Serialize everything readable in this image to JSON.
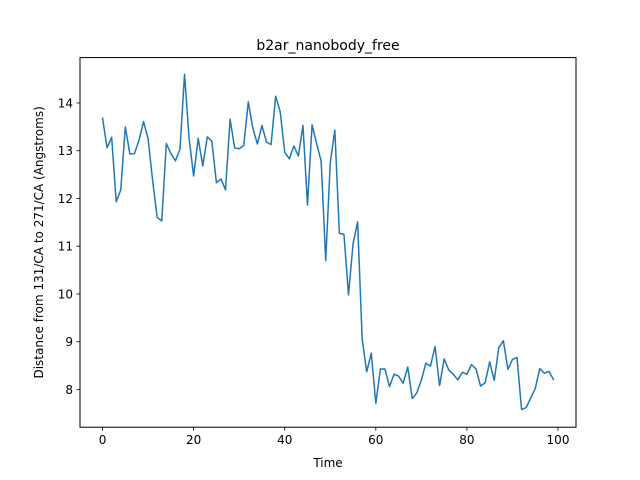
{
  "chart_data": {
    "type": "line",
    "title": "b2ar_nanobody_free",
    "xlabel": "Time",
    "ylabel": "Distance from 131/CA to 271/CA (Angstroms)",
    "xlim": [
      -4.95,
      103.95
    ],
    "ylim": [
      7.21,
      14.95
    ],
    "xticks": [
      0,
      20,
      40,
      60,
      80,
      100
    ],
    "xtick_labels": [
      "0",
      "20",
      "40",
      "60",
      "80",
      "100"
    ],
    "yticks": [
      8,
      9,
      10,
      11,
      12,
      13,
      14
    ],
    "ytick_labels": [
      "8",
      "9",
      "10",
      "11",
      "12",
      "13",
      "14"
    ],
    "grid": false,
    "legend": "none",
    "series": [
      {
        "color": "#1f77b4",
        "x": [
          0,
          1,
          2,
          3,
          4,
          5,
          6,
          7,
          8,
          9,
          10,
          11,
          12,
          13,
          14,
          15,
          16,
          17,
          18,
          19,
          20,
          21,
          22,
          23,
          24,
          25,
          26,
          27,
          28,
          29,
          30,
          31,
          32,
          33,
          34,
          35,
          36,
          37,
          38,
          39,
          40,
          41,
          42,
          43,
          44,
          45,
          46,
          47,
          48,
          49,
          50,
          51,
          52,
          53,
          54,
          55,
          56,
          57,
          58,
          59,
          60,
          61,
          62,
          63,
          64,
          65,
          66,
          67,
          68,
          69,
          70,
          71,
          72,
          73,
          74,
          75,
          76,
          77,
          78,
          79,
          80,
          81,
          82,
          83,
          84,
          85,
          86,
          87,
          88,
          89,
          90,
          91,
          92,
          93,
          94,
          95,
          96,
          97,
          98,
          99
        ],
        "y": [
          13.68,
          13.06,
          13.28,
          11.93,
          12.18,
          13.5,
          12.93,
          12.94,
          13.22,
          13.61,
          13.25,
          12.37,
          11.6,
          11.53,
          13.15,
          12.94,
          12.79,
          13.03,
          14.6,
          13.26,
          12.47,
          13.26,
          12.68,
          13.29,
          13.2,
          12.33,
          12.41,
          12.18,
          13.66,
          13.06,
          13.04,
          13.11,
          14.02,
          13.47,
          13.14,
          13.53,
          13.18,
          13.13,
          14.14,
          13.82,
          12.97,
          12.83,
          13.1,
          12.89,
          13.53,
          11.86,
          13.54,
          13.15,
          12.78,
          10.7,
          12.75,
          13.43,
          11.27,
          11.25,
          9.98,
          11.05,
          11.51,
          9.06,
          8.37,
          8.76,
          7.71,
          8.43,
          8.43,
          8.06,
          8.32,
          8.28,
          8.13,
          8.47,
          7.81,
          7.93,
          8.2,
          8.55,
          8.49,
          8.9,
          8.08,
          8.64,
          8.41,
          8.32,
          8.2,
          8.36,
          8.32,
          8.52,
          8.43,
          8.07,
          8.14,
          8.58,
          8.19,
          8.88,
          9.02,
          8.42,
          8.63,
          8.67,
          7.58,
          7.62,
          7.82,
          8.02,
          8.44,
          8.34,
          8.38,
          8.21
        ]
      }
    ]
  }
}
